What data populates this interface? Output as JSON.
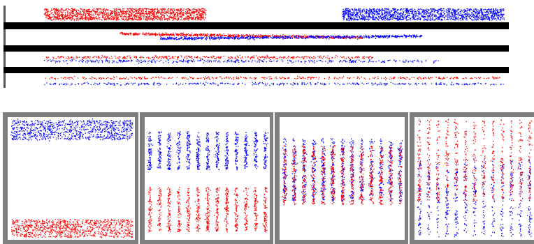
{
  "colors": {
    "red_series": "#ff0000",
    "blue_series": "#0000ff",
    "separator": "#000000",
    "panel_frame": "#7f7f7f",
    "background": "#ffffff"
  },
  "top_strip": {
    "rows": [
      {
        "name": "row-1",
        "red": {
          "from": 0.08,
          "to": 0.4,
          "density": "dense"
        },
        "blue": {
          "from": 0.67,
          "to": 0.99,
          "density": "dense"
        }
      },
      {
        "name": "row-2",
        "red": {
          "from": 0.23,
          "to": 0.71,
          "density": "medium"
        },
        "blue": {
          "from": 0.31,
          "to": 0.83,
          "density": "medium"
        }
      },
      {
        "name": "row-3",
        "red": {
          "from": 0.08,
          "to": 0.73,
          "density": "sparse"
        },
        "blue": {
          "from": 0.08,
          "to": 0.86,
          "density": "sparse"
        }
      },
      {
        "name": "row-4",
        "red": {
          "from": 0.08,
          "to": 0.99,
          "density": "sparse"
        },
        "blue": {
          "from": 0.08,
          "to": 0.99,
          "density": "sparse"
        }
      }
    ]
  },
  "panels": [
    {
      "name": "panel-1",
      "pattern": "separated"
    },
    {
      "name": "panel-2",
      "pattern": "approaching"
    },
    {
      "name": "panel-3",
      "pattern": "interleaving"
    },
    {
      "name": "panel-4",
      "pattern": "mixed"
    }
  ]
}
